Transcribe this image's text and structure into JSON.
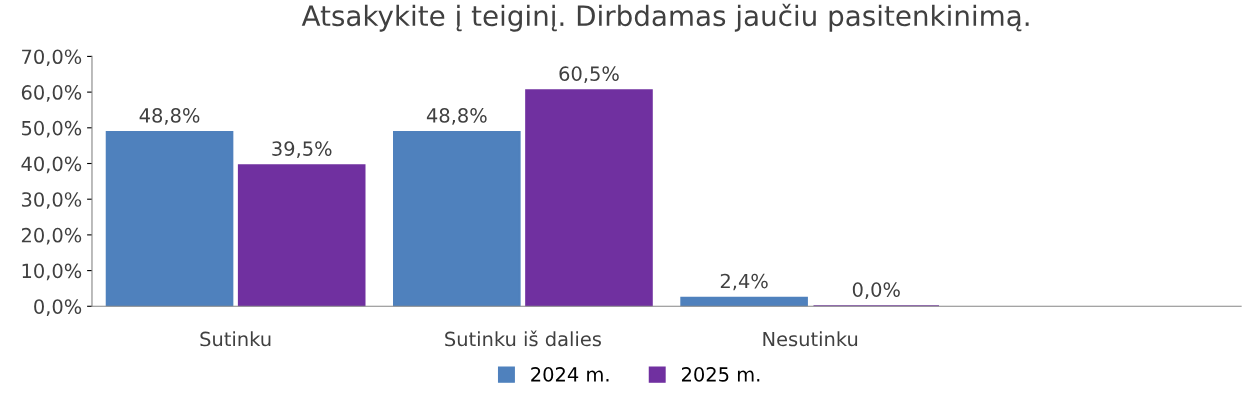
{
  "chart_data": {
    "type": "bar",
    "title": "Atsakykite į teiginį. Dirbdamas jaučiu pasitenkinimą.",
    "categories": [
      "Sutinku",
      "Sutinku iš dalies",
      "Nesutinku",
      null
    ],
    "series": [
      {
        "name": "2024 m.",
        "color": "#4f81bd",
        "values": [
          48.8,
          48.8,
          2.4,
          null
        ],
        "value_labels": [
          "48,8%",
          "48,8%",
          "2,4%",
          null
        ]
      },
      {
        "name": "2025 m.",
        "color": "#7030a0",
        "values": [
          39.5,
          60.5,
          0.0,
          null
        ],
        "value_labels": [
          "39,5%",
          "60,5%",
          "0,0%",
          null
        ]
      }
    ],
    "ylim": [
      0,
      70
    ],
    "yticks": [
      {
        "value": 0,
        "label": "0,0%"
      },
      {
        "value": 10,
        "label": "10,0%"
      },
      {
        "value": 20,
        "label": "20,0%"
      },
      {
        "value": 30,
        "label": "30,0%"
      },
      {
        "value": 40,
        "label": "40,0%"
      },
      {
        "value": 50,
        "label": "50,0%"
      },
      {
        "value": 60,
        "label": "60,0%"
      },
      {
        "value": 70,
        "label": "70,0%"
      }
    ],
    "grid": false,
    "legend": "bottom"
  }
}
